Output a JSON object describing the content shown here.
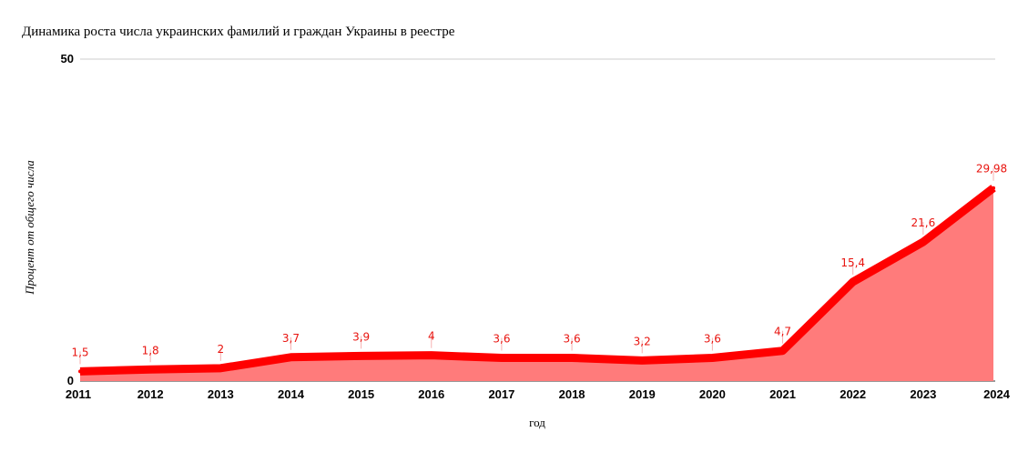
{
  "chart_data": {
    "type": "area",
    "title": "Динамика роста числа украинских фамилий и граждан Украины в реестре",
    "xlabel": "год",
    "ylabel": "Процент от общего числа",
    "ylim": [
      0,
      50
    ],
    "yticks": [
      "0",
      "50"
    ],
    "grid": true,
    "legend": "none",
    "colors": {
      "line": "#ff0000",
      "fill": "#ff7b7b",
      "label": "#e8140f"
    },
    "categories": [
      "2011",
      "2012",
      "2013",
      "2014",
      "2015",
      "2016",
      "2017",
      "2018",
      "2019",
      "2020",
      "2021",
      "2022",
      "2023",
      "2024"
    ],
    "series": [
      {
        "values": [
          1.5,
          1.8,
          2,
          3.7,
          3.9,
          4,
          3.6,
          3.6,
          3.2,
          3.6,
          4.7,
          15.4,
          21.6,
          29.98
        ],
        "labels": [
          "1,5",
          "1,8",
          "2",
          "3,7",
          "3,9",
          "4",
          "3,6",
          "3,6",
          "3,2",
          "3,6",
          "4,7",
          "15,4",
          "21,6",
          "29,98"
        ]
      }
    ]
  }
}
